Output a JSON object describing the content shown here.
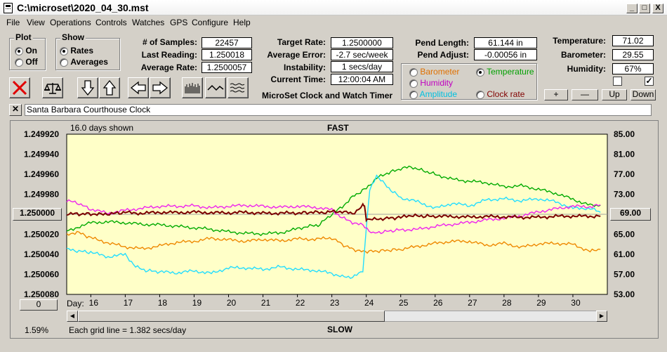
{
  "window": {
    "title": "C:\\microset\\2020_04_30.mst",
    "min": "_",
    "max": "□",
    "close": "X"
  },
  "menu": [
    "File",
    "View",
    "Operations",
    "Controls",
    "Watches",
    "GPS",
    "Configure",
    "Help"
  ],
  "plot": {
    "title": "Plot",
    "options": [
      "On",
      "Off"
    ],
    "selected": "On"
  },
  "show": {
    "title": "Show",
    "options": [
      "Rates",
      "Averages"
    ],
    "selected": "Rates"
  },
  "stats": {
    "samples_label": "# of Samples:",
    "samples": "22457",
    "last_label": "Last Reading:",
    "last": "1.250018",
    "avg_label": "Average Rate:",
    "avg": "1.2500057"
  },
  "rates": {
    "target_label": "Target Rate:",
    "target": "1.2500000",
    "error_label": "Average Error:",
    "error": "-2.7 sec/week",
    "instab_label": "Instability:",
    "instab": "1 secs/day",
    "time_label": "Current Time:",
    "time": "12:00:04 AM"
  },
  "app_caption": "MicroSet Clock and Watch Timer",
  "pendulum": {
    "length_label": "Pend Length:",
    "length": "61.144 in",
    "adjust_label": "Pend Adjust:",
    "adjust": "-0.00056 in"
  },
  "sensors": {
    "options": [
      {
        "label": "Barometer",
        "color": "#e07000",
        "checked": false
      },
      {
        "label": "Temperature",
        "color": "#00a000",
        "checked": true
      },
      {
        "label": "Humidity",
        "color": "#c000c0",
        "checked": false
      },
      {
        "label": "Amplitude",
        "color": "#00c0e0",
        "checked": false
      },
      {
        "label": "Clock rate",
        "color": "#800000",
        "checked": false
      }
    ]
  },
  "environment": {
    "temp_label": "Temperature:",
    "temp": "71.02",
    "baro_label": "Barometer:",
    "baro": "29.55",
    "hum_label": "Humidity:",
    "hum": "67%",
    "check1": false,
    "check2": true
  },
  "scale_buttons": [
    "+",
    "—",
    "Up",
    "Down"
  ],
  "clock_name": "Santa Barbara Courthouse Clock",
  "chart": {
    "days_shown": "16.0 days shown",
    "top_label": "FAST",
    "bottom_label": "SLOW",
    "grid_note": "Each grid line = 1.382 secs/day",
    "percent": "1.59%",
    "day_prefix": "Day:",
    "left_button": "1.250000",
    "right_button": "69.00",
    "zero_button": "0"
  },
  "chart_data": {
    "type": "line",
    "xlabel": "Day:",
    "x_ticks": [
      16,
      17,
      18,
      19,
      20,
      21,
      22,
      23,
      24,
      25,
      26,
      27,
      28,
      29,
      30
    ],
    "left_axis": {
      "ticks": [
        "1.249920",
        "1.249940",
        "1.249960",
        "1.249980",
        "1.250000",
        "1.250020",
        "1.250040",
        "1.250060",
        "1.250080"
      ],
      "ylim": [
        1.24992,
        1.25008
      ]
    },
    "right_axis": {
      "ticks": [
        "85.00",
        "81.00",
        "77.00",
        "73.00",
        "69.00",
        "65.00",
        "61.00",
        "57.00",
        "53.00"
      ],
      "ylim": [
        53,
        85
      ]
    },
    "xlim": [
      15.3,
      31.0
    ],
    "series": [
      {
        "name": "Temperature",
        "color": "#00aa00",
        "axis": "right",
        "x": [
          15.3,
          16,
          16.5,
          17,
          17.5,
          18,
          18.5,
          19,
          19.5,
          20,
          20.5,
          21,
          21.5,
          22,
          22.3,
          22.6,
          23,
          23.3,
          23.6,
          24,
          24.3,
          24.6,
          25,
          25.3,
          25.6,
          26,
          26.5,
          27,
          27.5,
          28,
          28.5,
          29,
          29.5,
          30,
          30.5,
          30.8
        ],
        "y": [
          65.7,
          67.3,
          67.5,
          67.3,
          67.0,
          66.9,
          66.6,
          66.3,
          66.0,
          65.5,
          65.2,
          65.1,
          65.3,
          66.1,
          66.6,
          66.8,
          69.0,
          70.5,
          72.5,
          74.2,
          76.2,
          77.2,
          78.1,
          78.5,
          77.8,
          77.0,
          76.0,
          75.6,
          75.3,
          74.5,
          74.7,
          74.0,
          73.2,
          72.0,
          70.8,
          70.8
        ]
      },
      {
        "name": "Barometer",
        "color": "#ee8800",
        "axis": "right",
        "x": [
          15.3,
          15.6,
          16,
          16.5,
          17,
          17.5,
          18,
          18.5,
          19,
          19.5,
          20,
          20.5,
          21,
          21.5,
          22,
          22.5,
          23,
          23.4,
          23.8,
          24.2,
          24.6,
          25,
          25.5,
          26,
          26.5,
          27,
          27.5,
          28,
          28.5,
          29,
          29.5,
          30,
          30.5,
          30.8
        ],
        "y": [
          64.8,
          65.5,
          64.3,
          63.3,
          62.5,
          62.1,
          62.7,
          63.4,
          63.6,
          64.2,
          63.9,
          63.6,
          64.0,
          63.7,
          64.1,
          64.0,
          64.3,
          62.6,
          61.6,
          61.6,
          61.8,
          62.0,
          62.6,
          63.2,
          63.6,
          63.6,
          62.8,
          63.2,
          62.4,
          63.1,
          63.2,
          63.0,
          61.6,
          62.0
        ]
      },
      {
        "name": "Humidity",
        "color": "#ee22ee",
        "axis": "right",
        "x": [
          15.3,
          15.6,
          16,
          16.5,
          17,
          17.5,
          18,
          18.5,
          19,
          19.5,
          20,
          20.5,
          21,
          21.5,
          22,
          22.5,
          23,
          23.3,
          23.6,
          23.9,
          24.2,
          24.6,
          25,
          25.5,
          26,
          26.5,
          27,
          27.5,
          28,
          28.5,
          29,
          29.5,
          30,
          30.5,
          30.8
        ],
        "y": [
          71.7,
          71.3,
          70.0,
          69.2,
          69.8,
          70.2,
          70.6,
          70.6,
          70.7,
          70.3,
          70.6,
          70.8,
          70.6,
          70.4,
          70.6,
          70.4,
          69.9,
          68.3,
          67.4,
          66.8,
          65.2,
          65.6,
          65.9,
          66.0,
          66.6,
          67.0,
          67.4,
          67.9,
          68.2,
          68.7,
          69.5,
          70.1,
          70.6,
          70.5,
          70.9
        ]
      },
      {
        "name": "Amplitude",
        "color": "#22ddff",
        "axis": "right",
        "x": [
          15.3,
          15.6,
          16,
          16.5,
          17,
          17.3,
          17.6,
          18,
          18.5,
          19,
          19.5,
          20,
          20.5,
          21,
          21.5,
          22,
          22.5,
          23,
          23.3,
          23.6,
          23.9,
          24.0,
          24.1,
          24.3,
          24.6,
          25,
          25.5,
          26,
          26.5,
          27,
          27.5,
          28,
          28.5,
          29,
          29.5,
          30,
          30.5,
          30.8
        ],
        "y": [
          62.0,
          61.7,
          61.4,
          60.5,
          61.0,
          58.5,
          57.8,
          57.5,
          57.3,
          57.7,
          57.2,
          58.3,
          58.3,
          58.0,
          58.5,
          58.0,
          57.8,
          57.2,
          56.5,
          56.5,
          57.5,
          66.2,
          74.0,
          76.8,
          74.5,
          72.3,
          71.5,
          70.2,
          71.2,
          70.7,
          71.9,
          72.1,
          71.7,
          72.1,
          71.5,
          70.2,
          70.2,
          69.4
        ]
      },
      {
        "name": "Clock rate",
        "color": "#7a0000",
        "axis": "left",
        "x": [
          15.3,
          15.6,
          16,
          16.3,
          16.6,
          17,
          17.5,
          18,
          18.5,
          19,
          19.5,
          20,
          20.5,
          21,
          21.5,
          22,
          22.4,
          22.7,
          23,
          23.3,
          23.6,
          23.9,
          23.95,
          24.0,
          24.05,
          24.3,
          24.6,
          25,
          25.1,
          25.3,
          25.6,
          26,
          26.5,
          27,
          27.5,
          28,
          28.5,
          29,
          29.5,
          30,
          30.5,
          30.8
        ],
        "y": [
          1.2499995,
          1.2499998,
          1.2499995,
          1.2500002,
          1.2499992,
          1.2499982,
          1.249999,
          1.249998,
          1.2499983,
          1.2499978,
          1.2499985,
          1.2499985,
          1.249998,
          1.249999,
          1.2499988,
          1.2499988,
          1.249998,
          1.2499982,
          1.2499975,
          1.2499972,
          1.2499995,
          1.2499915,
          1.2499915,
          1.2500045,
          1.2500058,
          1.2500048,
          1.250004,
          1.2500032,
          1.2500012,
          1.2500016,
          1.2500018,
          1.250002,
          1.2500022,
          1.2500028,
          1.2500022,
          1.2500026,
          1.250003,
          1.250003,
          1.250002,
          1.2500018,
          1.250002,
          1.250002
        ]
      }
    ]
  }
}
